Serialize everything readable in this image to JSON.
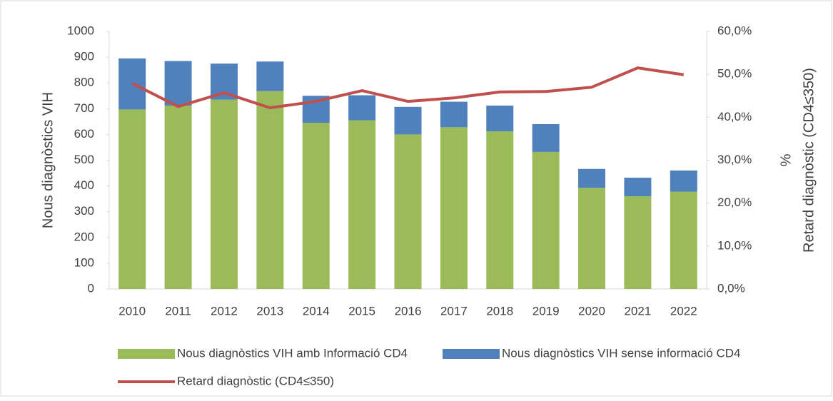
{
  "chart_data": {
    "type": "bar-line",
    "categories": [
      "2010",
      "2011",
      "2012",
      "2013",
      "2014",
      "2015",
      "2016",
      "2017",
      "2018",
      "2019",
      "2020",
      "2021",
      "2022"
    ],
    "series": [
      {
        "name": "Nous diagnòstics VIH amb Informació CD4",
        "type": "bar",
        "color": "#9bbb59",
        "values": [
          697,
          712,
          735,
          768,
          645,
          655,
          600,
          628,
          612,
          532,
          393,
          360,
          378
        ]
      },
      {
        "name": "Nous diagnòstics VIH sense informació CD4",
        "type": "bar",
        "color": "#4f81bd",
        "values": [
          198,
          173,
          140,
          115,
          105,
          97,
          107,
          99,
          100,
          108,
          73,
          72,
          82
        ]
      },
      {
        "name": "Retard diagnòstic (CD4≤350)",
        "type": "line",
        "axis": "y2",
        "color": "#c0504d",
        "values": [
          47.9,
          42.5,
          45.7,
          42.2,
          43.7,
          46.2,
          43.7,
          44.5,
          45.9,
          46.0,
          47.0,
          51.5,
          49.9
        ]
      }
    ],
    "stacked": true,
    "ylabel": "Nous diagnòstics VIH",
    "y2label": [
      "%",
      "Retard diagnòstic (CD4≤350)"
    ],
    "ylim": [
      0,
      1000
    ],
    "yticks": [
      0,
      100,
      200,
      300,
      400,
      500,
      600,
      700,
      800,
      900,
      1000
    ],
    "y2lim": [
      0,
      60
    ],
    "y2ticks": [
      {
        "value": 0,
        "label": "0,0%"
      },
      {
        "value": 10,
        "label": "10,0%"
      },
      {
        "value": 20,
        "label": "20,0%"
      },
      {
        "value": 30,
        "label": "30,0%"
      },
      {
        "value": 40,
        "label": "40,0%"
      },
      {
        "value": 50,
        "label": "50,0%"
      },
      {
        "value": 60,
        "label": "60,0%"
      }
    ],
    "legend": "bottom"
  }
}
